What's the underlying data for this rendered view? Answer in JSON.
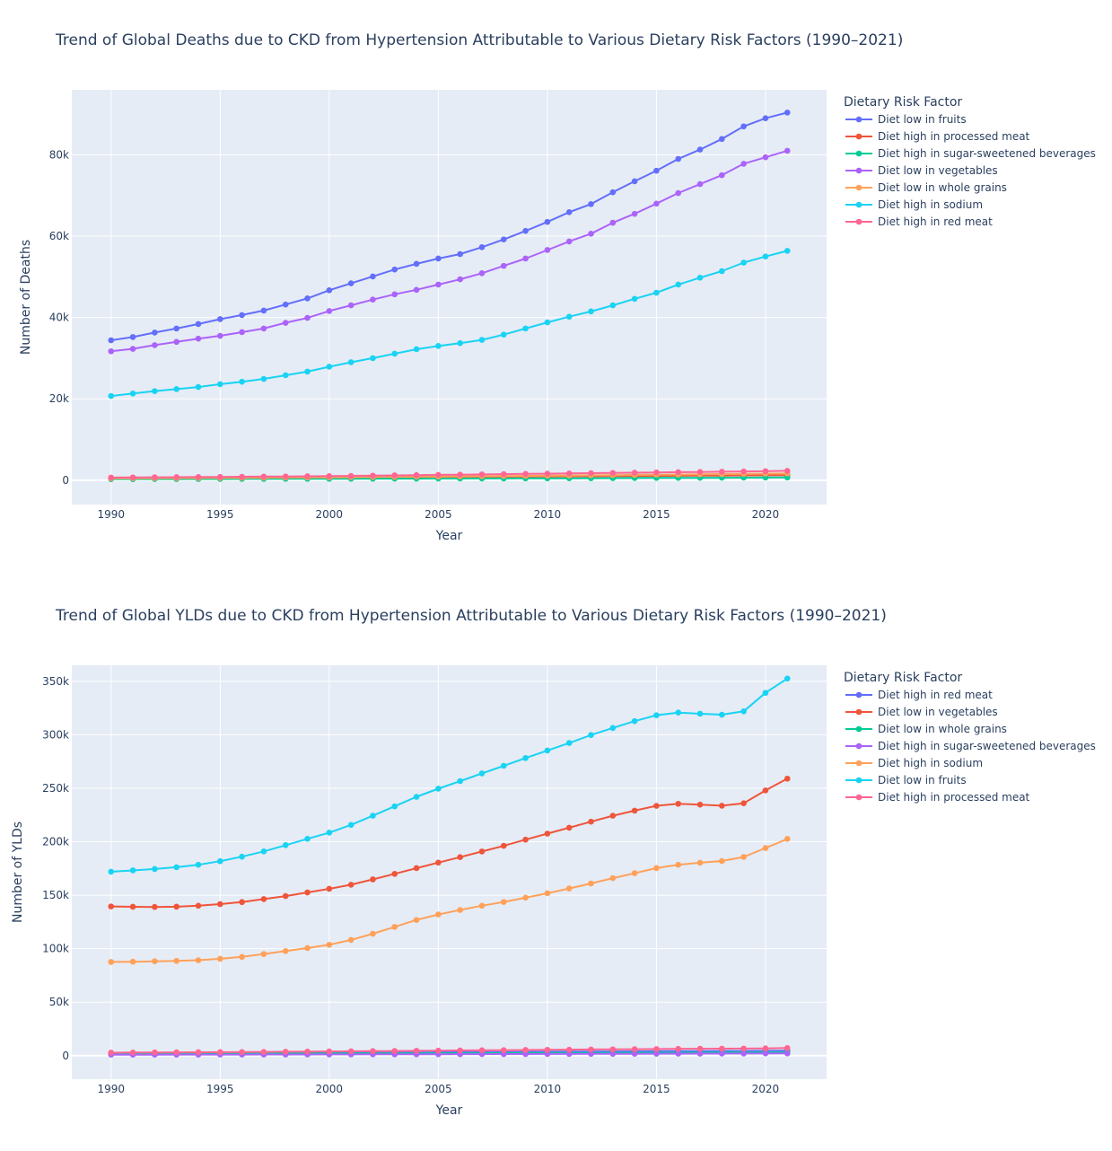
{
  "chart_data": [
    {
      "type": "line",
      "title": "Trend of Global Deaths due to CKD from Hypertension Attributable to Various Dietary Risk Factors (1990–2021)",
      "xlabel": "Year",
      "ylabel": "Number of Deaths",
      "legend_title": "Dietary Risk Factor",
      "legend_position": "right",
      "xlim": [
        1988.2,
        2022.8
      ],
      "ylim": [
        -6000,
        96000
      ],
      "xticks": [
        1990,
        1995,
        2000,
        2005,
        2010,
        2015,
        2020
      ],
      "xtick_labels": [
        "1990",
        "1995",
        "2000",
        "2005",
        "2010",
        "2015",
        "2020"
      ],
      "yticks": [
        0,
        20000,
        40000,
        60000,
        80000
      ],
      "ytick_labels": [
        "0",
        "20k",
        "40k",
        "60k",
        "80k"
      ],
      "x": [
        1990,
        1991,
        1992,
        1993,
        1994,
        1995,
        1996,
        1997,
        1998,
        1999,
        2000,
        2001,
        2002,
        2003,
        2004,
        2005,
        2006,
        2007,
        2008,
        2009,
        2010,
        2011,
        2012,
        2013,
        2014,
        2015,
        2016,
        2017,
        2018,
        2019,
        2020,
        2021
      ],
      "series": [
        {
          "name": "Diet low in fruits",
          "color": "#636efa",
          "values": [
            34400,
            35200,
            36300,
            37300,
            38400,
            39600,
            40600,
            41700,
            43200,
            44700,
            46700,
            48400,
            50100,
            51800,
            53200,
            54500,
            55600,
            57300,
            59200,
            61300,
            63500,
            65900,
            67900,
            70800,
            73500,
            76100,
            79000,
            81300,
            83900,
            87000,
            89000,
            90400
          ]
        },
        {
          "name": "Diet high in processed meat",
          "color": "#ef553b",
          "values": [
            400,
            420,
            440,
            460,
            480,
            500,
            520,
            540,
            560,
            580,
            600,
            630,
            660,
            690,
            720,
            750,
            780,
            810,
            840,
            870,
            900,
            930,
            960,
            990,
            1020,
            1050,
            1080,
            1110,
            1140,
            1170,
            1200,
            1230
          ]
        },
        {
          "name": "Diet high in sugar-sweetened beverages",
          "color": "#00cc96",
          "values": [
            250,
            260,
            270,
            280,
            290,
            300,
            310,
            320,
            330,
            340,
            350,
            360,
            370,
            380,
            390,
            400,
            410,
            420,
            430,
            440,
            450,
            470,
            490,
            510,
            530,
            550,
            570,
            590,
            610,
            630,
            650,
            670
          ]
        },
        {
          "name": "Diet low in vegetables",
          "color": "#ab63fa",
          "values": [
            31700,
            32300,
            33200,
            34000,
            34800,
            35500,
            36400,
            37300,
            38700,
            39900,
            41600,
            43000,
            44400,
            45700,
            46800,
            48100,
            49400,
            50900,
            52700,
            54500,
            56600,
            58700,
            60600,
            63300,
            65500,
            68000,
            70600,
            72800,
            75000,
            77800,
            79400,
            81000
          ]
        },
        {
          "name": "Diet low in whole grains",
          "color": "#ffa15a",
          "values": [
            450,
            470,
            490,
            510,
            530,
            550,
            580,
            610,
            640,
            670,
            700,
            740,
            780,
            820,
            860,
            900,
            940,
            980,
            1020,
            1060,
            1100,
            1150,
            1200,
            1250,
            1300,
            1350,
            1400,
            1450,
            1500,
            1550,
            1600,
            1650
          ]
        },
        {
          "name": "Diet high in sodium",
          "color": "#19d3f3",
          "values": [
            20700,
            21300,
            21900,
            22400,
            22900,
            23600,
            24200,
            24900,
            25800,
            26700,
            27900,
            29000,
            30000,
            31100,
            32200,
            33000,
            33700,
            34500,
            35800,
            37300,
            38800,
            40200,
            41500,
            43000,
            44600,
            46100,
            48100,
            49800,
            51400,
            53500,
            55000,
            56400
          ]
        },
        {
          "name": "Diet high in red meat",
          "color": "#ff6692",
          "values": [
            650,
            680,
            710,
            740,
            770,
            800,
            840,
            880,
            920,
            960,
            1000,
            1060,
            1120,
            1180,
            1240,
            1300,
            1360,
            1420,
            1480,
            1540,
            1600,
            1660,
            1720,
            1780,
            1840,
            1900,
            1960,
            2020,
            2080,
            2140,
            2200,
            2300
          ]
        }
      ]
    },
    {
      "type": "line",
      "title": "Trend of Global YLDs due to CKD from Hypertension Attributable to Various Dietary Risk Factors (1990–2021)",
      "xlabel": "Year",
      "ylabel": "Number of YLDs",
      "legend_title": "Dietary Risk Factor",
      "legend_position": "right",
      "xlim": [
        1988.2,
        2022.8
      ],
      "ylim": [
        -22000,
        365000
      ],
      "xticks": [
        1990,
        1995,
        2000,
        2005,
        2010,
        2015,
        2020
      ],
      "xtick_labels": [
        "1990",
        "1995",
        "2000",
        "2005",
        "2010",
        "2015",
        "2020"
      ],
      "yticks": [
        0,
        50000,
        100000,
        150000,
        200000,
        250000,
        300000,
        350000
      ],
      "ytick_labels": [
        "0",
        "50k",
        "100k",
        "150k",
        "200k",
        "250k",
        "300k",
        "350k"
      ],
      "x": [
        1990,
        1991,
        1992,
        1993,
        1994,
        1995,
        1996,
        1997,
        1998,
        1999,
        2000,
        2001,
        2002,
        2003,
        2004,
        2005,
        2006,
        2007,
        2008,
        2009,
        2010,
        2011,
        2012,
        2013,
        2014,
        2015,
        2016,
        2017,
        2018,
        2019,
        2020,
        2021
      ],
      "series": [
        {
          "name": "Diet high in red meat",
          "color": "#636efa",
          "values": [
            2000,
            2050,
            2100,
            2150,
            2200,
            2250,
            2300,
            2350,
            2450,
            2550,
            2650,
            2750,
            2850,
            2950,
            3050,
            3150,
            3250,
            3350,
            3450,
            3550,
            3650,
            3750,
            3850,
            3950,
            4050,
            4150,
            4250,
            4300,
            4350,
            4400,
            4500,
            4700
          ]
        },
        {
          "name": "Diet low in vegetables",
          "color": "#ef553b",
          "values": [
            139500,
            139200,
            139000,
            139300,
            140200,
            141700,
            143600,
            146400,
            149200,
            152600,
            156000,
            159800,
            164800,
            170000,
            175300,
            180500,
            185600,
            190900,
            196200,
            202000,
            207600,
            213100,
            218800,
            224300,
            229100,
            233600,
            235500,
            234700,
            233700,
            236000,
            248000,
            259000
          ]
        },
        {
          "name": "Diet low in whole grains",
          "color": "#00cc96",
          "values": [
            1500,
            1550,
            1600,
            1650,
            1700,
            1750,
            1800,
            1850,
            1900,
            1950,
            2000,
            2050,
            2100,
            2150,
            2200,
            2250,
            2300,
            2350,
            2400,
            2450,
            2500,
            2550,
            2600,
            2650,
            2700,
            2750,
            2800,
            2850,
            2900,
            2950,
            3000,
            3100
          ]
        },
        {
          "name": "Diet high in sugar-sweetened beverages",
          "color": "#ab63fa",
          "values": [
            900,
            920,
            940,
            960,
            980,
            1000,
            1030,
            1060,
            1090,
            1120,
            1150,
            1190,
            1230,
            1270,
            1310,
            1350,
            1390,
            1430,
            1470,
            1510,
            1550,
            1600,
            1650,
            1700,
            1750,
            1800,
            1850,
            1900,
            1950,
            2000,
            2050,
            2100
          ]
        },
        {
          "name": "Diet high in sodium",
          "color": "#ffa15a",
          "values": [
            87600,
            87800,
            88200,
            88600,
            89200,
            90600,
            92300,
            95000,
            97800,
            100600,
            103700,
            108200,
            114000,
            120400,
            126900,
            132000,
            136200,
            140200,
            143700,
            147700,
            151800,
            156300,
            161000,
            166000,
            170600,
            175400,
            178500,
            180400,
            182000,
            185800,
            194100,
            202600
          ]
        },
        {
          "name": "Diet low in fruits",
          "color": "#19d3f3",
          "values": [
            172000,
            173200,
            174500,
            176200,
            178500,
            181800,
            186000,
            191000,
            196800,
            202700,
            208500,
            215700,
            224300,
            233100,
            242000,
            249600,
            256700,
            263900,
            271000,
            278300,
            285300,
            292300,
            299800,
            306400,
            312800,
            318300,
            320800,
            319700,
            318800,
            321900,
            339200,
            352600
          ]
        },
        {
          "name": "Diet high in processed meat",
          "color": "#ff6692",
          "values": [
            2800,
            2900,
            3000,
            3100,
            3200,
            3300,
            3400,
            3500,
            3650,
            3800,
            3950,
            4100,
            4250,
            4400,
            4550,
            4700,
            4850,
            5000,
            5150,
            5300,
            5450,
            5600,
            5750,
            5900,
            6050,
            6200,
            6350,
            6450,
            6550,
            6650,
            6800,
            7100
          ]
        }
      ]
    }
  ]
}
